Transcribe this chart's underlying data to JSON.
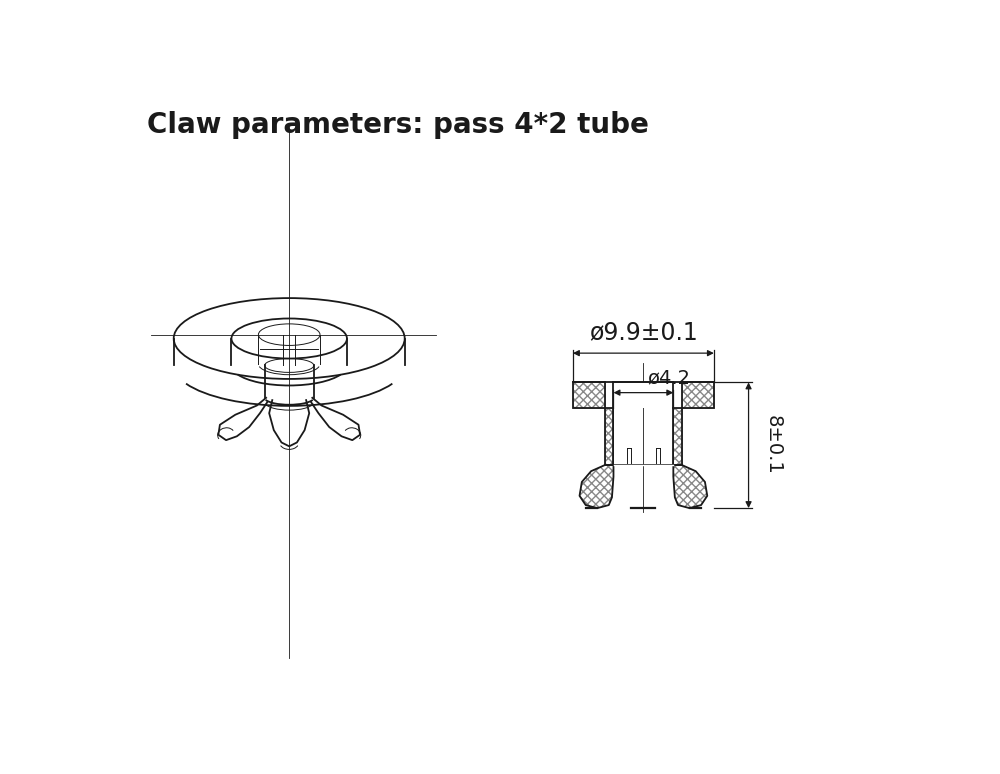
{
  "title": "Claw parameters: pass 4*2 tube",
  "title_fontsize": 20,
  "title_bold": true,
  "bg_color": "#ffffff",
  "line_color": "#1a1a1a",
  "dim1_label": "ø9.9±0.1",
  "dim2_label": "ø4.2",
  "dim3_label": "8±0.1"
}
